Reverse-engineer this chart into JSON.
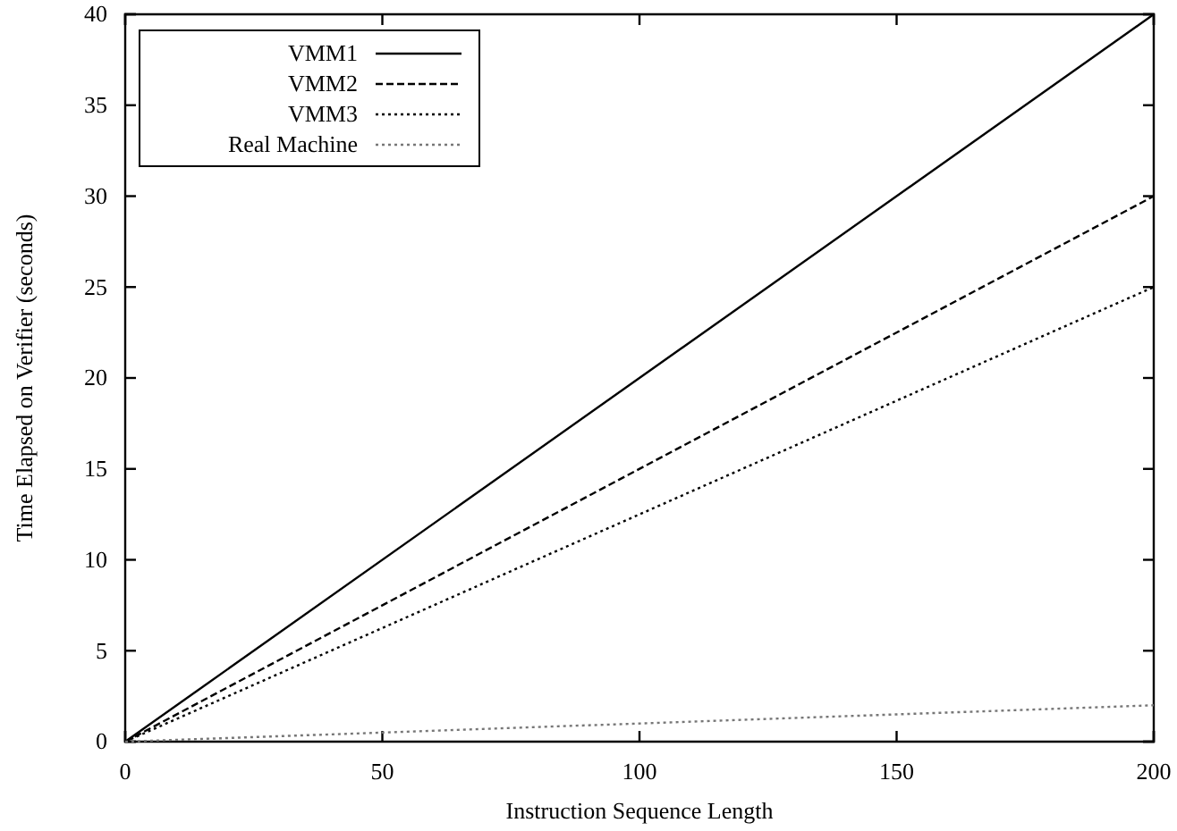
{
  "chart_data": {
    "type": "line",
    "xlabel": "Instruction Sequence Length",
    "ylabel": "Time Elapsed on Verifier (seconds)",
    "xlim": [
      0,
      200
    ],
    "ylim": [
      0,
      40
    ],
    "xticks": [
      0,
      50,
      100,
      150,
      200
    ],
    "yticks": [
      0,
      5,
      10,
      15,
      20,
      25,
      30,
      35,
      40
    ],
    "grid": false,
    "legend": "top left",
    "marker": "none",
    "x": [
      0,
      200
    ],
    "series": [
      {
        "name": "VMM1",
        "color": "#000000",
        "line_style": "solid",
        "values": [
          0,
          40
        ]
      },
      {
        "name": "VMM2",
        "color": "#000000",
        "line_style": "dashed",
        "values": [
          0,
          30
        ]
      },
      {
        "name": "VMM3",
        "color": "#000000",
        "line_style": "dotted",
        "values": [
          0,
          25
        ]
      },
      {
        "name": "Real Machine",
        "color": "#777777",
        "line_style": "dotted",
        "values": [
          0,
          2
        ]
      }
    ]
  }
}
